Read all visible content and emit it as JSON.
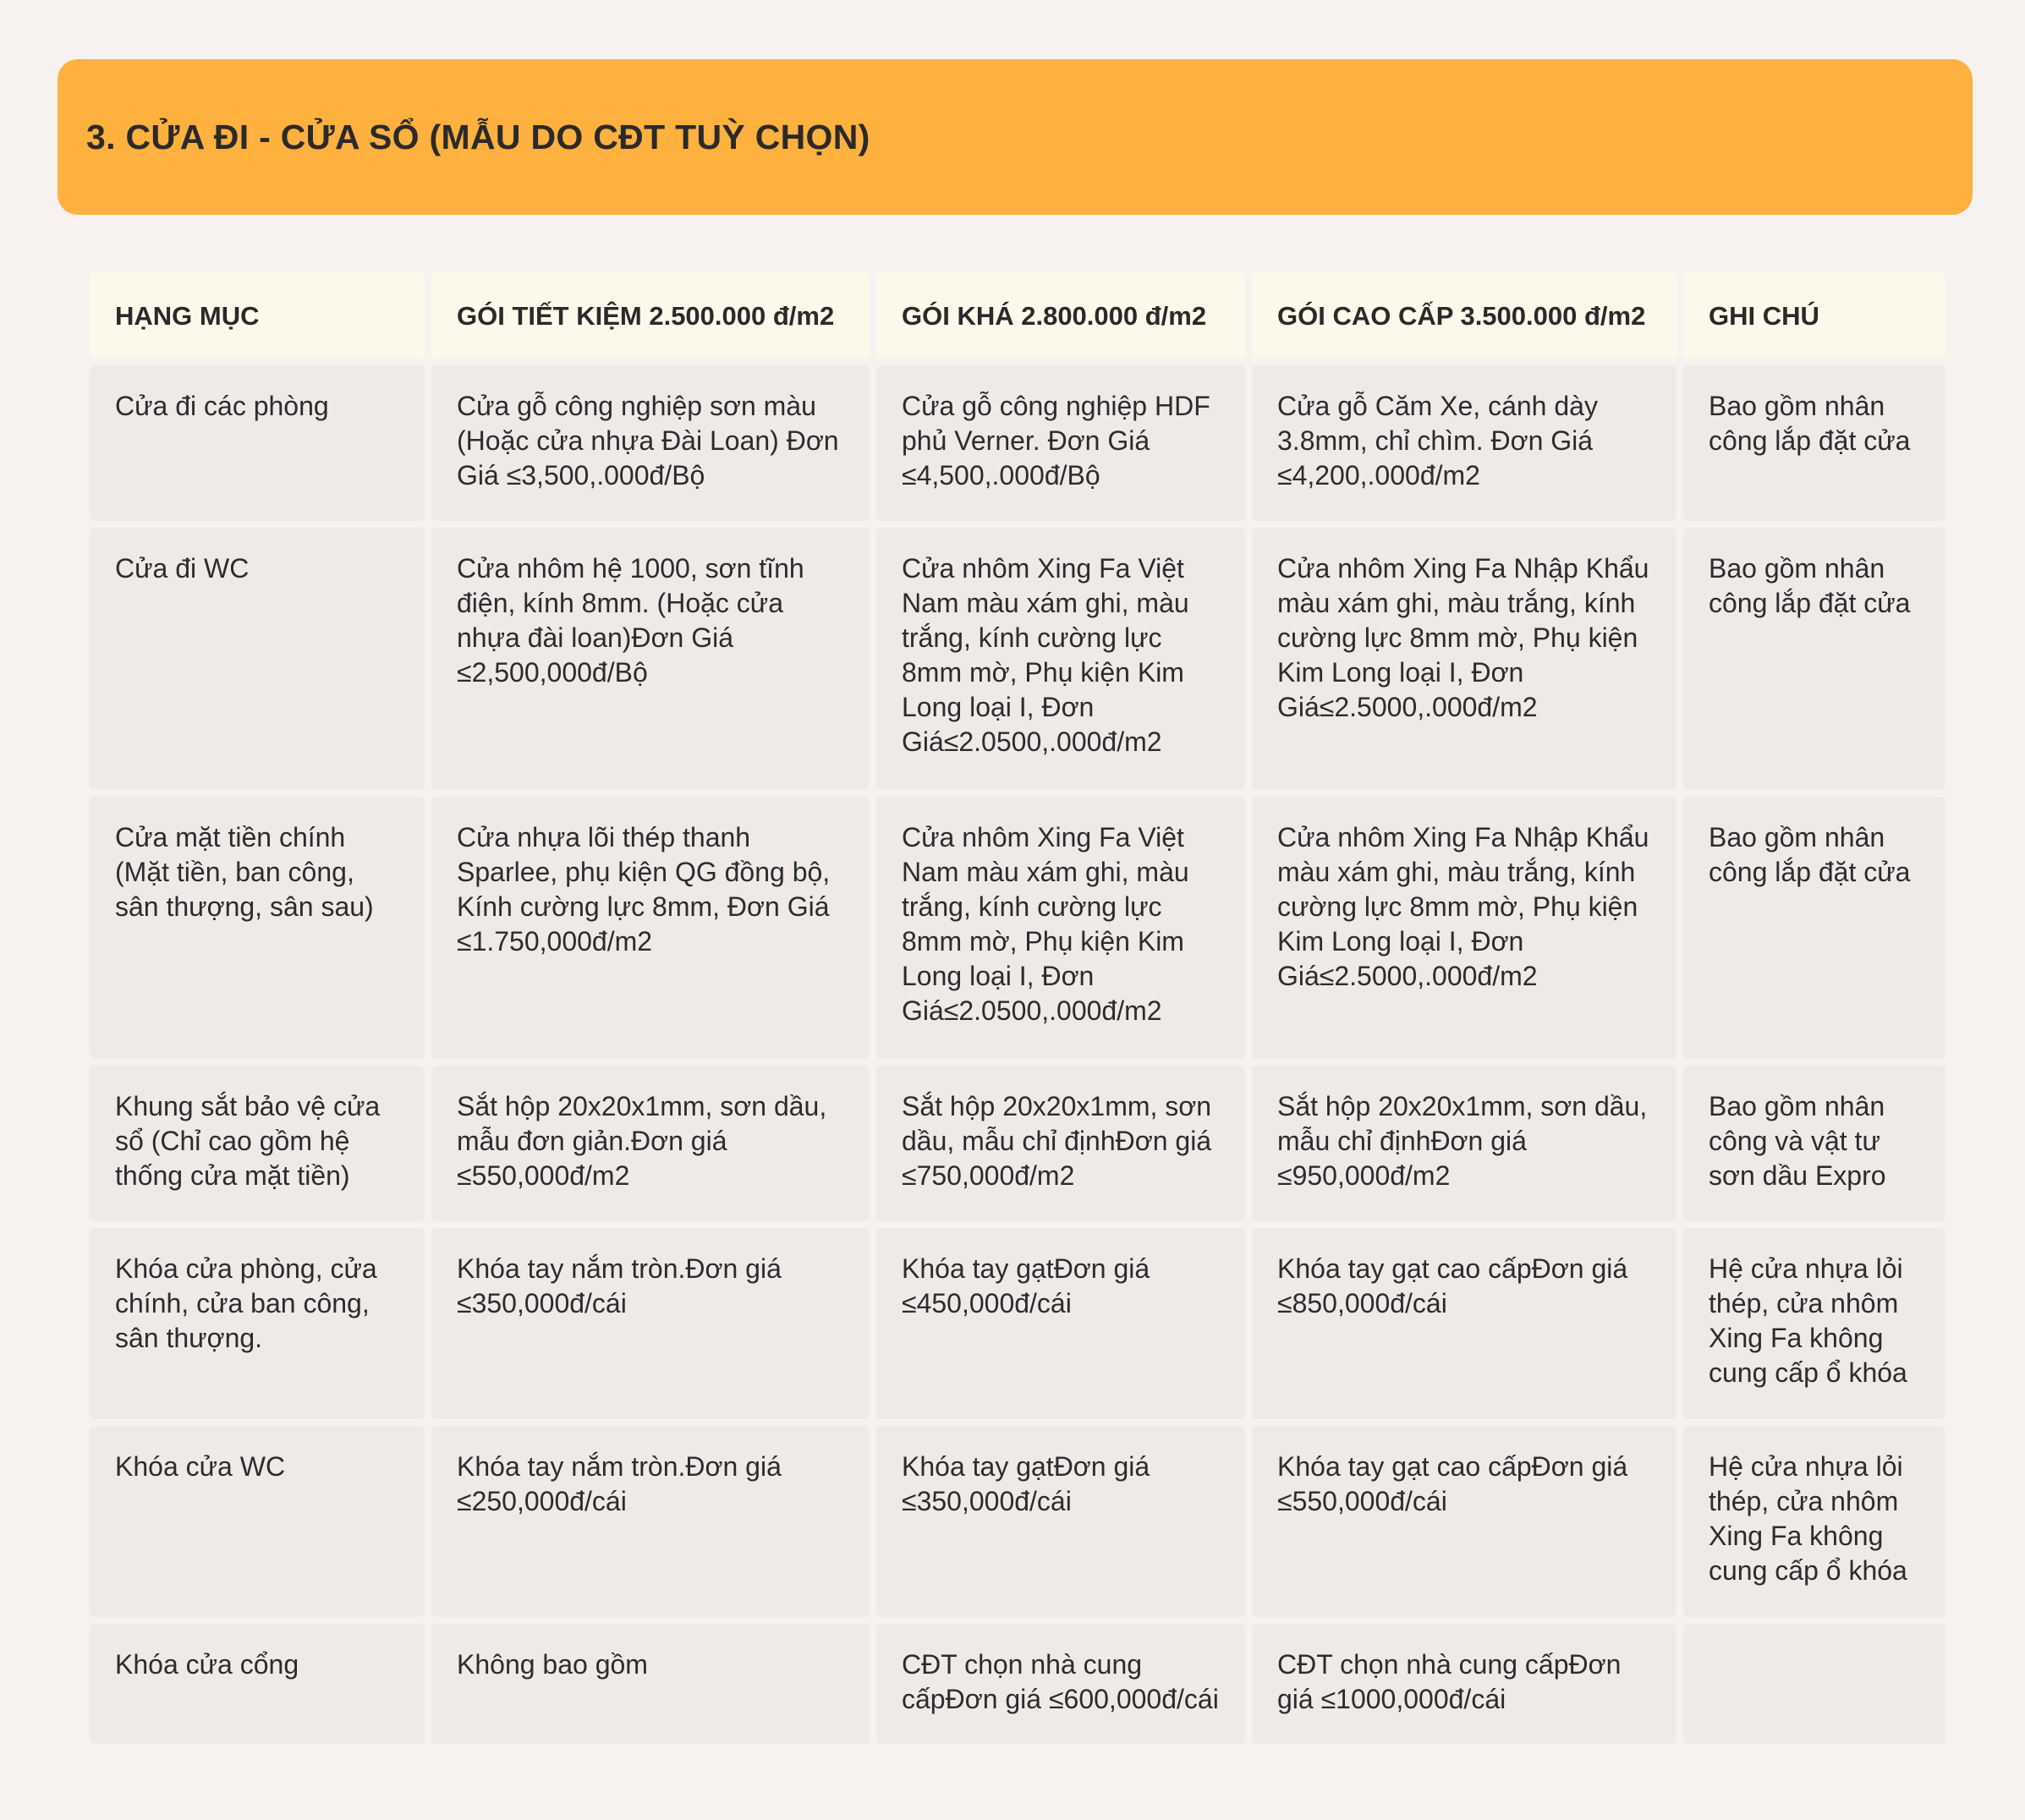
{
  "section": {
    "title": "3. CỬA ĐI - CỬA SỔ (MẪU DO CĐT TUỲ CHỌN)"
  },
  "table": {
    "headers": [
      "HẠNG MỤC",
      "GÓI TIẾT KIỆM 2.500.000 đ/m2",
      "GÓI KHÁ 2.800.000 đ/m2",
      "GÓI CAO CẤP 3.500.000 đ/m2",
      "GHI CHÚ"
    ],
    "rows": [
      {
        "item": "Cửa đi các phòng",
        "basic": "Cửa gỗ công nghiệp sơn màu (Hoặc cửa nhựa Đài Loan) Đơn Giá ≤3,500,.000đ/Bộ",
        "standard": "Cửa gỗ công nghiệp HDF phủ Verner.  Đơn Giá ≤4,500,.000đ/Bộ",
        "premium": "Cửa gỗ Căm Xe, cánh dày 3.8mm, chỉ chìm. Đơn Giá ≤4,200,.000đ/m2",
        "note": "Bao gồm nhân công lắp đặt cửa"
      },
      {
        "item": "Cửa đi WC",
        "basic": "Cửa nhôm hệ 1000, sơn tĩnh điện, kính 8mm. (Hoặc cửa nhựa đài loan)Đơn Giá ≤2,500,000đ/Bộ",
        "standard": "Cửa nhôm Xing Fa Việt Nam màu xám ghi, màu trắng, kính cường lực 8mm mờ, Phụ kiện Kim Long loại I, Đơn Giá≤2.0500,.000đ/m2",
        "premium": "Cửa nhôm Xing Fa Nhập Khẩu màu xám ghi, màu trắng, kính cường lực 8mm mờ, Phụ kiện Kim Long loại I, Đơn Giá≤2.5000,.000đ/m2",
        "note": "Bao gồm nhân công lắp đặt cửa"
      },
      {
        "item": "Cửa mặt tiền chính (Mặt tiền, ban công, sân thượng, sân sau)",
        "basic": "Cửa nhựa lõi thép thanh Sparlee, phụ kiện QG đồng bộ, Kính cường lực 8mm, Đơn Giá ≤1.750,000đ/m2",
        "standard": "Cửa nhôm Xing Fa Việt Nam màu xám ghi, màu trắng, kính cường lực 8mm mờ, Phụ kiện Kim Long loại I, Đơn Giá≤2.0500,.000đ/m2",
        "premium": "Cửa nhôm Xing Fa Nhập Khẩu màu xám ghi, màu trắng, kính cường lực 8mm mờ, Phụ kiện Kim Long loại I, Đơn Giá≤2.5000,.000đ/m2",
        "note": "Bao gồm nhân công lắp đặt cửa"
      },
      {
        "item": "Khung sắt bảo vệ cửa sổ (Chỉ cao gồm hệ thống cửa mặt tiền)",
        "basic": "Sắt hộp 20x20x1mm, sơn dầu, mẫu đơn giản.Đơn giá ≤550,000đ/m2",
        "standard": "Sắt hộp 20x20x1mm, sơn dầu, mẫu chỉ địnhĐơn giá ≤750,000đ/m2",
        "premium": "Sắt hộp 20x20x1mm, sơn dầu, mẫu chỉ địnhĐơn giá ≤950,000đ/m2",
        "note": "Bao gồm nhân công và vật tư sơn dầu Expro"
      },
      {
        "item": "Khóa cửa phòng, cửa chính, cửa ban công, sân thượng.",
        "basic": "Khóa tay nắm tròn.Đơn giá ≤350,000đ/cái",
        "standard": "Khóa tay gạtĐơn giá ≤450,000đ/cái",
        "premium": "Khóa tay gạt cao cấpĐơn giá ≤850,000đ/cái",
        "note": "Hệ cửa nhựa lỏi thép, cửa nhôm Xing Fa không cung cấp ổ khóa"
      },
      {
        "item": "Khóa cửa WC",
        "basic": "Khóa tay nắm tròn.Đơn giá ≤250,000đ/cái",
        "standard": "Khóa tay gạtĐơn giá ≤350,000đ/cái",
        "premium": "Khóa tay gạt cao cấpĐơn giá ≤550,000đ/cái",
        "note": "Hệ cửa nhựa lỏi thép, cửa nhôm Xing Fa không cung cấp ổ khóa"
      },
      {
        "item": "Khóa cửa cổng",
        "basic": "Không bao gồm",
        "standard": "CĐT chọn nhà cung cấpĐơn giá ≤600,000đ/cái",
        "premium": "CĐT chọn nhà cung cấpĐơn giá ≤1000,000đ/cái",
        "note": ""
      }
    ]
  }
}
